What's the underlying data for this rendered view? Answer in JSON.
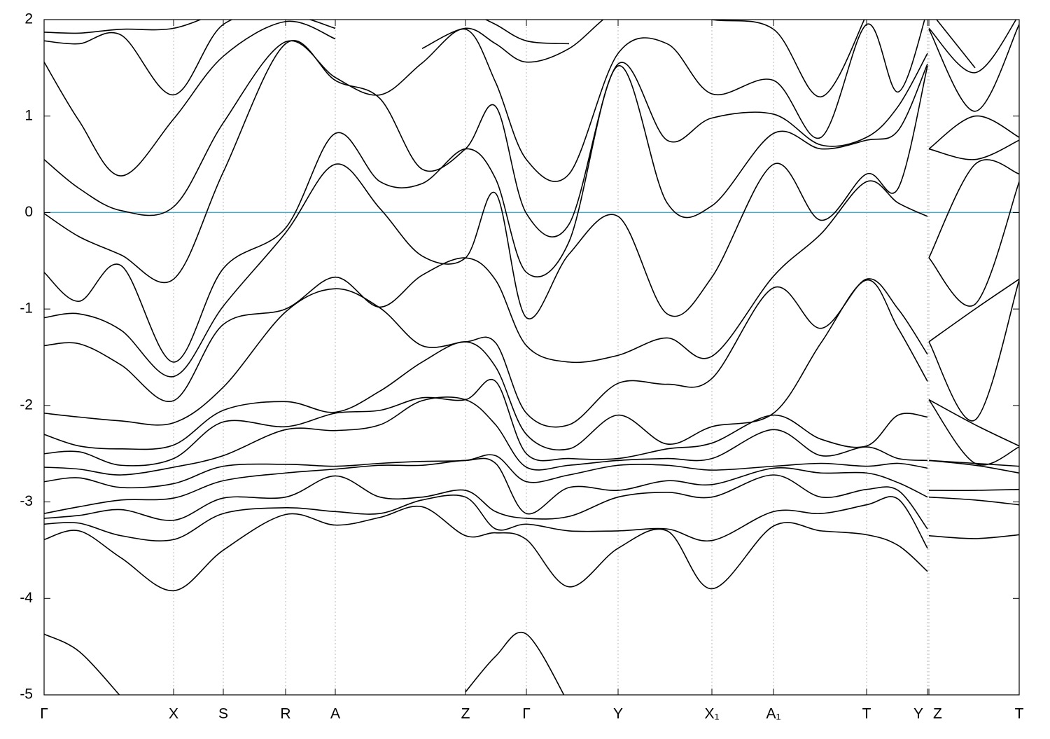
{
  "chart_data": {
    "type": "line",
    "xlim": [
      0,
      13.93
    ],
    "ylim": [
      -5,
      2
    ],
    "yticks": [
      -5,
      -4,
      -3,
      -2,
      -1,
      0,
      1,
      2
    ],
    "xticks": [
      {
        "value": 0,
        "label": "Γ"
      },
      {
        "value": 1.85,
        "label": "X"
      },
      {
        "value": 2.56,
        "label": "S"
      },
      {
        "value": 3.45,
        "label": "R"
      },
      {
        "value": 4.16,
        "label": "A"
      },
      {
        "value": 6.02,
        "label": "Z"
      },
      {
        "value": 6.89,
        "label": "Γ"
      },
      {
        "value": 8.2,
        "label": "Y"
      },
      {
        "value": 9.54,
        "label": "X₁"
      },
      {
        "value": 10.42,
        "label": "A₁"
      },
      {
        "value": 11.75,
        "label": "T"
      },
      {
        "value": 12.62,
        "label": "Y"
      },
      {
        "value": 12.64,
        "label": "Z"
      },
      {
        "value": 13.93,
        "label": "T"
      }
    ],
    "grid": true,
    "grid_color": "#aaaaaa",
    "reference_line": {
      "value": 0,
      "color": "#4aa8c4"
    },
    "x": [
      0,
      0.5,
      1.1,
      1.85,
      2.56,
      3.45,
      4.16,
      4.8,
      5.4,
      6.02,
      6.45,
      6.89,
      7.5,
      8.2,
      8.9,
      9.54,
      10.42,
      11.1,
      11.75,
      12.2,
      12.62,
      12.63,
      12.64,
      13.3,
      13.93
    ],
    "series": [
      {
        "color": "#000000",
        "values": [
          -4.37,
          -4.55,
          -5.02,
          null,
          null,
          null,
          null,
          null,
          null,
          -4.97,
          -4.6,
          -4.37,
          -5.1,
          null,
          null,
          null,
          null,
          null,
          null,
          null,
          null,
          null,
          -4.97,
          null,
          null
        ]
      },
      {
        "color": "#000000",
        "values": [
          -3.39,
          -3.3,
          -3.58,
          -3.92,
          -3.5,
          -3.13,
          -3.24,
          -3.16,
          -3.05,
          -3.35,
          -3.32,
          -3.39,
          -3.88,
          -3.48,
          -3.3,
          -3.9,
          -3.25,
          -3.3,
          -3.34,
          -3.45,
          -3.72,
          null,
          -3.35,
          -3.38,
          -3.34
        ]
      },
      {
        "color": "#000000",
        "values": [
          -3.23,
          -3.22,
          -3.35,
          -3.39,
          -3.12,
          -3.06,
          -3.1,
          -3.12,
          -2.98,
          -2.95,
          -3.28,
          -3.23,
          -3.3,
          -3.3,
          -3.28,
          -3.4,
          -3.1,
          -3.12,
          -3.03,
          -2.97,
          -3.48,
          null,
          -2.95,
          -2.98,
          -3.03
        ]
      },
      {
        "color": "#000000",
        "values": [
          -3.17,
          -3.14,
          -3.08,
          -3.19,
          -2.96,
          -2.95,
          -2.73,
          -2.95,
          -2.95,
          -2.88,
          -3.1,
          -3.17,
          -3.15,
          -2.95,
          -2.9,
          -2.95,
          -2.72,
          -2.95,
          -2.87,
          -2.88,
          -3.28,
          null,
          -2.88,
          -2.88,
          -2.87
        ]
      },
      {
        "color": "#000000",
        "values": [
          -3.12,
          -3.05,
          -2.98,
          -2.96,
          -2.78,
          -2.7,
          -2.66,
          -2.62,
          -2.62,
          -2.57,
          -2.6,
          -3.12,
          -2.85,
          -2.88,
          -2.78,
          -2.82,
          -2.65,
          -2.7,
          -2.7,
          -2.8,
          -2.95,
          null,
          -2.57,
          -2.62,
          -2.7
        ]
      },
      {
        "color": "#000000",
        "values": [
          -2.79,
          -2.75,
          -2.85,
          -2.81,
          -2.63,
          -2.61,
          -2.63,
          -2.6,
          -2.58,
          -2.57,
          -2.52,
          -2.79,
          -2.72,
          -2.62,
          -2.62,
          -2.67,
          -2.63,
          -2.6,
          -2.63,
          -2.6,
          -2.65,
          null,
          -2.57,
          -2.6,
          -2.63
        ]
      },
      {
        "color": "#000000",
        "values": [
          -2.64,
          -2.66,
          -2.72,
          -2.64,
          -2.52,
          -2.25,
          -2.26,
          -2.2,
          -1.95,
          -1.94,
          -2.2,
          -2.64,
          -2.62,
          -2.57,
          -2.55,
          -2.55,
          -2.25,
          -2.52,
          -2.43,
          -2.55,
          -2.57,
          null,
          -1.94,
          -2.6,
          -2.43
        ]
      },
      {
        "color": "#000000",
        "values": [
          -2.5,
          -2.48,
          -2.62,
          -2.55,
          -2.17,
          -2.22,
          -2.08,
          -2.05,
          -1.92,
          -1.94,
          -1.75,
          -2.5,
          -2.55,
          -2.55,
          -2.45,
          -2.39,
          -2.1,
          -2.35,
          -2.42,
          -2.1,
          -2.12,
          null,
          -1.94,
          -2.2,
          -2.42
        ]
      },
      {
        "color": "#000000",
        "values": [
          -2.3,
          -2.42,
          -2.45,
          -2.41,
          -2.05,
          -1.96,
          -2.07,
          -1.85,
          -1.55,
          -1.34,
          -1.6,
          -2.3,
          -2.45,
          -2.1,
          -2.4,
          -2.22,
          -2.08,
          -1.35,
          -0.7,
          -1.2,
          -1.75,
          null,
          -1.34,
          -2.15,
          -0.7
        ]
      },
      {
        "color": "#000000",
        "values": [
          -2.08,
          -2.12,
          -2.16,
          -2.18,
          -1.81,
          -1.03,
          -0.79,
          -0.99,
          -1.38,
          -1.34,
          -1.35,
          -2.08,
          -2.2,
          -1.77,
          -1.78,
          -1.72,
          -0.78,
          -1.2,
          -0.69,
          -1.0,
          -1.47,
          null,
          -1.34,
          -1.0,
          -0.69
        ]
      },
      {
        "color": "#000000",
        "values": [
          -1.38,
          -1.36,
          -1.58,
          -1.95,
          -1.16,
          -1.0,
          -0.67,
          -0.98,
          -0.65,
          -0.47,
          -0.7,
          -1.38,
          -1.55,
          -1.48,
          -1.3,
          -1.49,
          -0.66,
          -0.22,
          0.32,
          0.1,
          -0.04,
          null,
          -0.47,
          -0.95,
          0.32
        ]
      },
      {
        "color": "#000000",
        "values": [
          -1.09,
          -1.05,
          -1.22,
          -1.7,
          -0.97,
          -0.21,
          0.5,
          0.04,
          -0.45,
          -0.47,
          0.2,
          -1.09,
          -0.43,
          -0.04,
          -1.05,
          -0.67,
          0.5,
          -0.08,
          0.4,
          0.25,
          1.52,
          null,
          -0.47,
          0.5,
          0.4
        ]
      },
      {
        "color": "#000000",
        "values": [
          -0.62,
          -0.92,
          -0.55,
          -1.55,
          -0.58,
          -0.16,
          0.82,
          0.32,
          0.3,
          0.66,
          0.35,
          -0.62,
          -0.3,
          1.52,
          0.1,
          0.07,
          0.82,
          0.66,
          0.75,
          0.85,
          1.54,
          null,
          0.66,
          0.55,
          0.75
        ]
      },
      {
        "color": "#000000",
        "values": [
          -0.01,
          -0.25,
          -0.44,
          -0.69,
          0.42,
          1.75,
          1.37,
          1.18,
          0.45,
          0.66,
          1.1,
          -0.01,
          -0.12,
          1.54,
          0.75,
          0.98,
          1.02,
          0.7,
          0.78,
          1.1,
          1.65,
          null,
          0.66,
          1.0,
          0.78
        ]
      },
      {
        "color": "#000000",
        "values": [
          0.55,
          0.25,
          0.02,
          0.06,
          0.93,
          1.77,
          1.4,
          1.22,
          1.55,
          1.9,
          1.35,
          0.55,
          0.4,
          1.65,
          1.75,
          1.23,
          1.37,
          0.78,
          1.95,
          1.25,
          2.1,
          null,
          1.9,
          1.05,
          1.95
        ]
      },
      {
        "color": "#000000",
        "values": [
          1.56,
          0.95,
          0.38,
          0.97,
          1.62,
          1.98,
          1.8,
          null,
          1.7,
          1.91,
          1.75,
          1.56,
          1.7,
          2.1,
          2.1,
          2.0,
          1.9,
          1.2,
          2.05,
          null,
          null,
          null,
          1.91,
          1.45,
          2.05
        ]
      },
      {
        "color": "#000000",
        "values": [
          1.78,
          1.75,
          1.84,
          1.22,
          1.95,
          2.05,
          1.91,
          null,
          null,
          2.1,
          1.95,
          1.78,
          1.75,
          null,
          null,
          null,
          2.0,
          null,
          null,
          null,
          null,
          null,
          2.1,
          1.5,
          null
        ]
      },
      {
        "color": "#000000",
        "values": [
          1.87,
          1.86,
          1.9,
          1.91,
          2.1,
          null,
          null,
          null,
          null,
          null,
          null,
          1.87,
          null,
          null,
          null,
          null,
          null,
          null,
          null,
          null,
          null,
          null,
          null,
          null,
          null
        ]
      }
    ]
  }
}
